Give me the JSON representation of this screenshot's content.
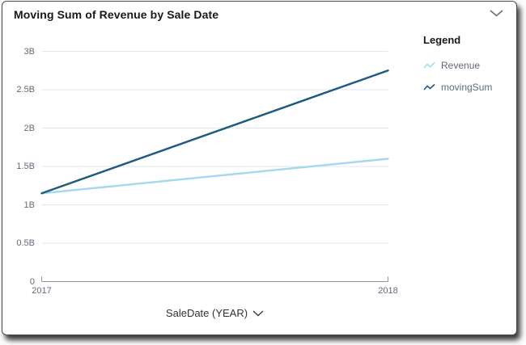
{
  "panel": {
    "title": "Moving Sum of Revenue by Sale Date"
  },
  "controls": {
    "collapse_icon": "chevron-down"
  },
  "legend": {
    "title": "Legend",
    "items": [
      {
        "label": "Revenue",
        "color": "#a5d9ec",
        "icon": "line-sparkline"
      },
      {
        "label": "movingSum",
        "color": "#1d5b80",
        "icon": "line-sparkline"
      }
    ]
  },
  "x_axis": {
    "label": "SaleDate (YEAR)",
    "dropdown_icon": "chevron-down"
  },
  "colors": {
    "series_revenue": "#a5d9ec",
    "series_movingsum": "#1d5b80",
    "grid": "#e3e6e8",
    "axis": "#8b959e",
    "axis_text": "#5f6b7a",
    "title_text": "#16191f"
  },
  "chart_data": {
    "type": "line",
    "title": "Moving Sum of Revenue by Sale Date",
    "xlabel": "SaleDate (YEAR)",
    "ylabel": "",
    "x": [
      2017,
      2018
    ],
    "x_tick_labels": [
      "2017",
      "2018"
    ],
    "series": [
      {
        "name": "Revenue",
        "color": "#a5d9ec",
        "values": [
          1150000000,
          1600000000
        ]
      },
      {
        "name": "movingSum",
        "color": "#1d5b80",
        "values": [
          1150000000,
          2750000000
        ]
      }
    ],
    "ylim": [
      0,
      3000000000
    ],
    "y_ticks": [
      0,
      500000000,
      1000000000,
      1500000000,
      2000000000,
      2500000000,
      3000000000
    ],
    "y_tick_labels": [
      "0",
      "0.5B",
      "1B",
      "1.5B",
      "2B",
      "2.5B",
      "3B"
    ],
    "grid": true,
    "legend_position": "right"
  }
}
